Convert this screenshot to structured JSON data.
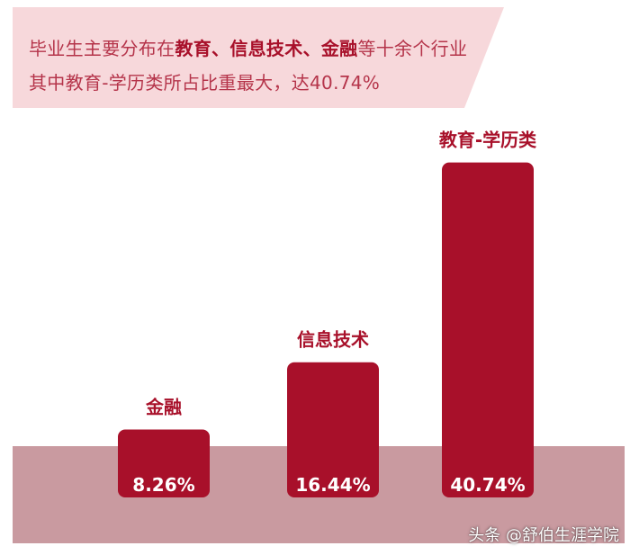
{
  "banner": {
    "line1": {
      "segments": [
        {
          "text": "毕业生主要分布在",
          "bold": false
        },
        {
          "text": "教育",
          "bold": true
        },
        {
          "text": "、",
          "bold": true
        },
        {
          "text": "信息技术",
          "bold": true
        },
        {
          "text": "、",
          "bold": true
        },
        {
          "text": "金融",
          "bold": true
        },
        {
          "text": "等十余个行业",
          "bold": false
        }
      ]
    },
    "line2": "其中教育-学历类所占比重最大，达40.74%"
  },
  "watermark": "头条 @舒伯生涯学院",
  "colors": {
    "bar": "#a8102a",
    "base_band": "#c99aa0",
    "banner_bg": "#f7d8db",
    "label": "#a8102a",
    "value_text": "#ffffff"
  },
  "chart_data": {
    "type": "bar",
    "categories": [
      "金融",
      "信息技术",
      "教育-学历类"
    ],
    "values": [
      8.26,
      16.44,
      40.74
    ],
    "value_labels": [
      "8.26%",
      "16.44%",
      "40.74%"
    ],
    "title": "",
    "xlabel": "",
    "ylabel": "",
    "ylim": [
      0,
      45
    ],
    "grid": false,
    "legend": "none"
  }
}
